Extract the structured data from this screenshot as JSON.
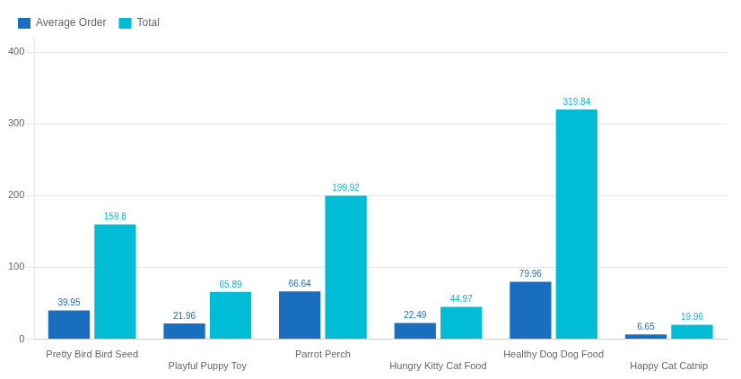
{
  "chart_data": {
    "type": "bar",
    "categories": [
      "Pretty Bird Bird Seed",
      "Playful Puppy Toy",
      "Parrot Perch",
      "Hungry Kitty Cat Food",
      "Healthy Dog Dog Food",
      "Happy Cat Catnip"
    ],
    "series": [
      {
        "name": "Average Order",
        "color": "#1A6EBF",
        "values": [
          39.95,
          21.96,
          66.64,
          22.49,
          79.96,
          6.65
        ]
      },
      {
        "name": "Total",
        "color": "#00BCD4",
        "values": [
          159.8,
          65.89,
          199.92,
          44.97,
          319.84,
          19.96
        ]
      }
    ],
    "ylim": [
      0,
      420
    ],
    "yticks": [
      0,
      100,
      200,
      300,
      400
    ],
    "grid": "y",
    "legend": "upper left",
    "data_labels": true
  }
}
